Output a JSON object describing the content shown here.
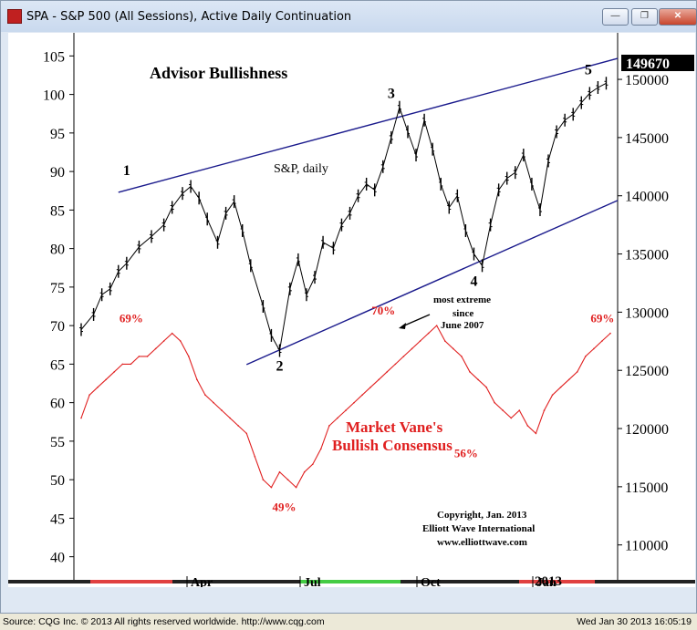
{
  "window": {
    "title": "SPA - S&P 500 (All Sessions), Active Daily Continuation",
    "min_label": "—",
    "max_label": "❐",
    "close_label": "✕"
  },
  "status_bar": {
    "source": "Source: CQG Inc. © 2013 All rights reserved worldwide. http://www.cqg.com",
    "timestamp": "Wed Jan 30 2013 16:05:19"
  },
  "chart_data": {
    "type": "line",
    "title": "Advisor Bullishness",
    "subtitle": "S&P, daily",
    "xlabel": "",
    "ylabel": "",
    "x_ticks": [
      "Apr",
      "Jul",
      "Oct",
      "Jan"
    ],
    "year_label": "2013",
    "left_axis": {
      "ticks": [
        105,
        100,
        95,
        90,
        85,
        80,
        75,
        70,
        65,
        60,
        55,
        50,
        45,
        40
      ],
      "range": [
        37,
        108
      ]
    },
    "right_axis": {
      "ticks": [
        150000,
        145000,
        140000,
        135000,
        130000,
        125000,
        120000,
        115000,
        110000
      ],
      "range": [
        107000,
        154000
      ],
      "last_price": "149670"
    },
    "price_pivots": [
      {
        "label": "1",
        "value": 141000
      },
      {
        "label": "2",
        "value": 126700
      },
      {
        "label": "3",
        "value": 147600
      },
      {
        "label": "4",
        "value": 134000
      },
      {
        "label": "5",
        "value": 149670
      }
    ],
    "sentiment_pivots": [
      {
        "label": "69%",
        "value": 69
      },
      {
        "label": "49%",
        "value": 49
      },
      {
        "label": "70%",
        "value": 70
      },
      {
        "label": "56%",
        "value": 56
      },
      {
        "label": "69%",
        "value": 69
      }
    ],
    "series": [
      {
        "name": "S&P, daily",
        "color": "#000000",
        "x": [
          0,
          6,
          10,
          14,
          18,
          22,
          28,
          34,
          40,
          44,
          49,
          53,
          57,
          61,
          66,
          70,
          74,
          78,
          82,
          88,
          92,
          96,
          101,
          105,
          109,
          113,
          117,
          122,
          126,
          130,
          134,
          138,
          142,
          146,
          150,
          154,
          158,
          162,
          166,
          170,
          174,
          178,
          182,
          186,
          190,
          194,
          198,
          202,
          206,
          210,
          214,
          218,
          222,
          226,
          230,
          234,
          238,
          242,
          246,
          250,
          254
        ],
        "y": [
          128500,
          129800,
          131500,
          132000,
          133500,
          134200,
          135600,
          136500,
          137500,
          139000,
          140200,
          140800,
          139800,
          138000,
          136000,
          138500,
          139500,
          137000,
          134000,
          130500,
          128000,
          126700,
          132000,
          134500,
          131500,
          133000,
          136000,
          135500,
          137500,
          138500,
          140000,
          141000,
          140500,
          142500,
          145000,
          147600,
          145500,
          143500,
          146500,
          144000,
          141000,
          139000,
          140000,
          137000,
          135000,
          134000,
          137500,
          140500,
          141500,
          142000,
          143500,
          141000,
          138800,
          143000,
          145500,
          146500,
          147000,
          148000,
          148800,
          149300,
          149670
        ]
      },
      {
        "name": "Market Vane's Bullish Consensus",
        "color": "#e02020",
        "x": [
          0,
          4,
          8,
          12,
          16,
          20,
          24,
          28,
          32,
          36,
          40,
          44,
          48,
          52,
          56,
          60,
          64,
          68,
          72,
          76,
          80,
          84,
          88,
          92,
          96,
          100,
          104,
          108,
          112,
          116,
          120,
          124,
          128,
          132,
          136,
          140,
          144,
          148,
          152,
          156,
          160,
          164,
          168,
          172,
          176,
          180,
          184,
          188,
          192,
          196,
          200,
          204,
          208,
          212,
          216,
          220,
          224,
          228,
          232,
          236,
          240,
          244,
          248,
          252,
          256
        ],
        "y": [
          58,
          61,
          62,
          63,
          64,
          65,
          65,
          66,
          66,
          67,
          68,
          69,
          68,
          66,
          63,
          61,
          60,
          59,
          58,
          57,
          56,
          53,
          50,
          49,
          51,
          50,
          49,
          51,
          52,
          54,
          57,
          58,
          59,
          60,
          61,
          62,
          63,
          64,
          65,
          66,
          67,
          68,
          69,
          70,
          68,
          67,
          66,
          64,
          63,
          62,
          60,
          59,
          58,
          59,
          57,
          56,
          59,
          61,
          62,
          63,
          64,
          66,
          67,
          68,
          69
        ]
      }
    ],
    "annotations": [
      {
        "text": "most extreme"
      },
      {
        "text": "since"
      },
      {
        "text": "June 2007"
      }
    ],
    "label_market_vane_1": "Market Vane's",
    "label_market_vane_2": "Bullish Consensus",
    "copyright_1": "Copyright, Jan. 2013",
    "copyright_2": "Elliott Wave International",
    "copyright_3": "www.elliottwave.com",
    "colors": {
      "price": "#000000",
      "sentiment": "#e02020",
      "channel": "#1a1a8c",
      "time_bar_red": "#e04040",
      "time_bar_green": "#44cc44",
      "time_bar_dark": "#222222"
    }
  }
}
